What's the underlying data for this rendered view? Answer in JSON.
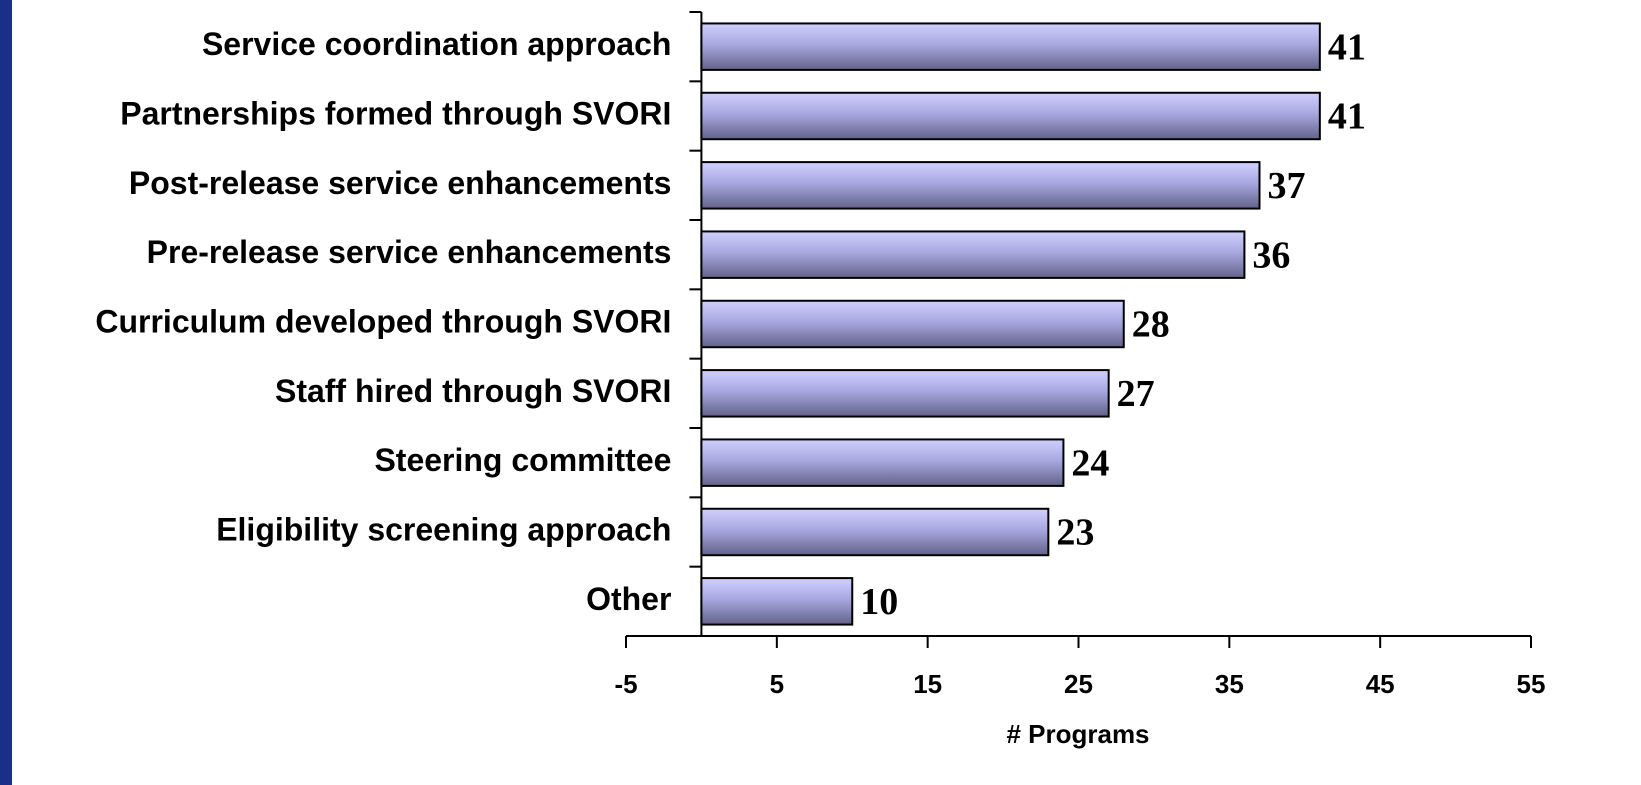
{
  "chart_data": {
    "type": "bar",
    "orientation": "horizontal",
    "x_label": "# Programs",
    "categories": [
      "Service coordination approach",
      "Partnerships formed through SVORI",
      "Post-release service enhancements",
      "Pre-release service enhancements",
      "Curriculum developed through SVORI",
      "Staff hired through SVORI",
      "Steering committee",
      "Eligibility screening approach",
      "Other"
    ],
    "values": [
      41,
      41,
      37,
      36,
      28,
      27,
      24,
      23,
      10
    ],
    "color": "#9d9dd8",
    "xlim": [
      -5,
      55
    ],
    "xticks": [
      -5,
      5,
      15,
      25,
      35,
      45,
      55
    ],
    "grid": false
  }
}
